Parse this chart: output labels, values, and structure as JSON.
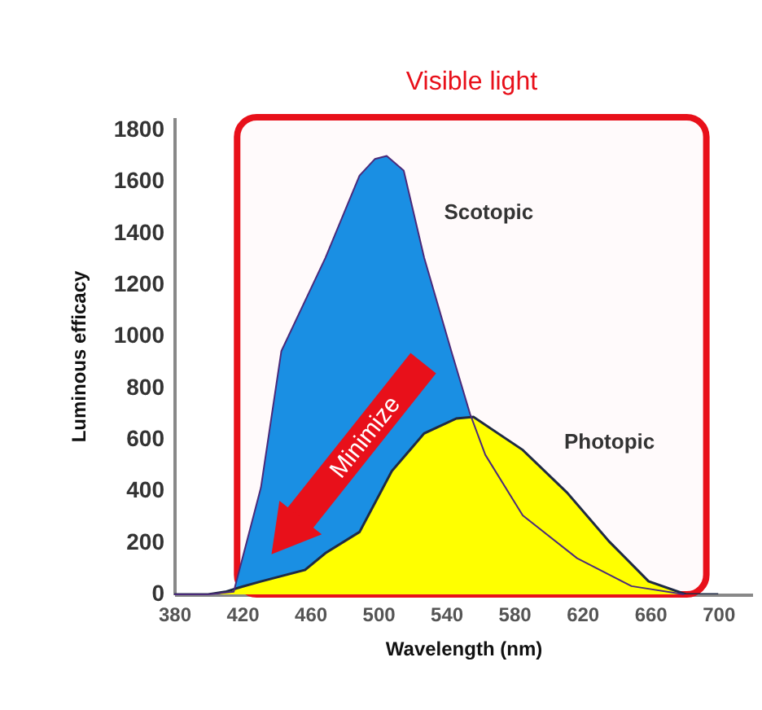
{
  "chart_data": {
    "type": "area",
    "xlabel": "Wavelength (nm)",
    "ylabel": "Luminous efficacy",
    "xlim": [
      380,
      720
    ],
    "xticks": [
      380,
      420,
      460,
      500,
      540,
      580,
      620,
      660,
      700
    ],
    "ylim": [
      0,
      1850
    ],
    "yticks": [
      0,
      200,
      400,
      600,
      800,
      1000,
      1200,
      1400,
      1600,
      1800
    ],
    "grid": false,
    "marker": "none",
    "series": [
      {
        "name": "Scotopic",
        "color": "#1a8fe3",
        "x": [
          380,
          400,
          415,
          431,
          443,
          469,
          489,
          498,
          505,
          515,
          527,
          543,
          554,
          563,
          585,
          617,
          649,
          680
        ],
        "values": [
          0,
          0,
          10,
          414,
          943,
          1306,
          1624,
          1688,
          1700,
          1643,
          1306,
          943,
          700,
          541,
          306,
          140,
          32,
          0
        ]
      },
      {
        "name": "Photopic",
        "color": "#ffff00",
        "x": [
          380,
          400,
          410,
          420,
          431,
          457,
          469,
          489,
          508,
          527,
          546,
          556,
          585,
          611,
          636,
          659,
          681,
          700
        ],
        "values": [
          0,
          0,
          10,
          30,
          50,
          95,
          160,
          242,
          478,
          624,
          682,
          688,
          560,
          395,
          204,
          51,
          0,
          0
        ]
      }
    ],
    "bands": [
      {
        "axis": "x",
        "from": 417,
        "to": 693,
        "label": "Visible light",
        "color": "#e8101a"
      }
    ],
    "annotations": [
      "Minimize"
    ]
  }
}
